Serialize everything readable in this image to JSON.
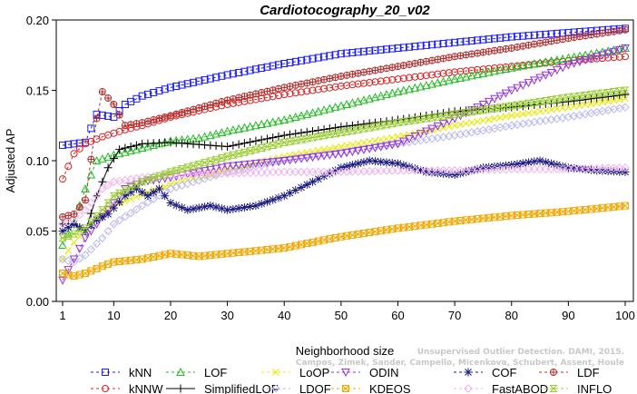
{
  "chart_data": {
    "type": "line",
    "title": "Cardiotocography_20_v02",
    "xlabel": "Neighborhood size",
    "ylabel": "Adjusted AP",
    "xlim": [
      1,
      100
    ],
    "ylim": [
      0.0,
      0.2
    ],
    "x_ticks": [
      "1",
      "10",
      "20",
      "30",
      "40",
      "50",
      "60",
      "70",
      "80",
      "90",
      "100"
    ],
    "y_ticks": [
      "0.00",
      "0.05",
      "0.10",
      "0.15",
      "0.20"
    ],
    "grid": false,
    "legend_position": "bottom",
    "series": [
      {
        "name": "kNN",
        "color": "#1c1cff",
        "marker": "square",
        "dash": "3,3",
        "points": [
          [
            1,
            0.111
          ],
          [
            5,
            0.113
          ],
          [
            7,
            0.133
          ],
          [
            10,
            0.131
          ],
          [
            12,
            0.14
          ],
          [
            15,
            0.146
          ],
          [
            20,
            0.152
          ],
          [
            30,
            0.161
          ],
          [
            40,
            0.169
          ],
          [
            50,
            0.176
          ],
          [
            60,
            0.18
          ],
          [
            70,
            0.184
          ],
          [
            80,
            0.188
          ],
          [
            90,
            0.191
          ],
          [
            100,
            0.194
          ]
        ]
      },
      {
        "name": "kNNW",
        "color": "#e02020",
        "marker": "circle",
        "dash": "3,3",
        "points": [
          [
            1,
            0.087
          ],
          [
            3,
            0.105
          ],
          [
            5,
            0.112
          ],
          [
            8,
            0.117
          ],
          [
            12,
            0.122
          ],
          [
            15,
            0.125
          ],
          [
            20,
            0.131
          ],
          [
            30,
            0.14
          ],
          [
            40,
            0.147
          ],
          [
            50,
            0.153
          ],
          [
            60,
            0.158
          ],
          [
            70,
            0.163
          ],
          [
            80,
            0.167
          ],
          [
            90,
            0.171
          ],
          [
            100,
            0.174
          ]
        ]
      },
      {
        "name": "LOF",
        "color": "#22bb22",
        "marker": "triangle",
        "dash": "3,3",
        "points": [
          [
            1,
            0.04
          ],
          [
            3,
            0.056
          ],
          [
            5,
            0.08
          ],
          [
            7,
            0.1
          ],
          [
            10,
            0.104
          ],
          [
            15,
            0.109
          ],
          [
            20,
            0.114
          ],
          [
            25,
            0.116
          ],
          [
            30,
            0.121
          ],
          [
            40,
            0.129
          ],
          [
            50,
            0.139
          ],
          [
            60,
            0.149
          ],
          [
            70,
            0.158
          ],
          [
            80,
            0.166
          ],
          [
            90,
            0.173
          ],
          [
            100,
            0.18
          ]
        ]
      },
      {
        "name": "SimplifiedLOF",
        "color": "#000000",
        "marker": "plus",
        "dash": "",
        "points": [
          [
            1,
            0.055
          ],
          [
            3,
            0.055
          ],
          [
            5,
            0.05
          ],
          [
            7,
            0.075
          ],
          [
            9,
            0.095
          ],
          [
            11,
            0.108
          ],
          [
            15,
            0.112
          ],
          [
            20,
            0.113
          ],
          [
            30,
            0.11
          ],
          [
            40,
            0.118
          ],
          [
            50,
            0.124
          ],
          [
            60,
            0.129
          ],
          [
            70,
            0.135
          ],
          [
            80,
            0.138
          ],
          [
            90,
            0.142
          ],
          [
            100,
            0.147
          ]
        ]
      },
      {
        "name": "LoOP",
        "color": "#e8e800",
        "marker": "x",
        "dash": "3,3",
        "points": [
          [
            1,
            0.03
          ],
          [
            3,
            0.042
          ],
          [
            5,
            0.05
          ],
          [
            8,
            0.062
          ],
          [
            10,
            0.068
          ],
          [
            15,
            0.076
          ],
          [
            20,
            0.083
          ],
          [
            30,
            0.093
          ],
          [
            40,
            0.103
          ],
          [
            50,
            0.11
          ],
          [
            60,
            0.117
          ],
          [
            70,
            0.125
          ],
          [
            80,
            0.132
          ],
          [
            90,
            0.138
          ],
          [
            100,
            0.144
          ]
        ]
      },
      {
        "name": "LDOF",
        "color": "#b8b8f0",
        "marker": "diamond",
        "dash": "3,3",
        "points": [
          [
            1,
            0.03
          ],
          [
            3,
            0.028
          ],
          [
            5,
            0.033
          ],
          [
            8,
            0.045
          ],
          [
            10,
            0.055
          ],
          [
            15,
            0.068
          ],
          [
            20,
            0.08
          ],
          [
            30,
            0.092
          ],
          [
            40,
            0.1
          ],
          [
            50,
            0.106
          ],
          [
            60,
            0.112
          ],
          [
            70,
            0.118
          ],
          [
            80,
            0.125
          ],
          [
            90,
            0.131
          ],
          [
            100,
            0.138
          ]
        ]
      },
      {
        "name": "ODIN",
        "color": "#9933dd",
        "marker": "triangle-down",
        "dash": "3,3",
        "points": [
          [
            1,
            0.015
          ],
          [
            3,
            0.03
          ],
          [
            5,
            0.045
          ],
          [
            8,
            0.06
          ],
          [
            10,
            0.07
          ],
          [
            12,
            0.08
          ],
          [
            15,
            0.085
          ],
          [
            20,
            0.088
          ],
          [
            25,
            0.092
          ],
          [
            30,
            0.096
          ],
          [
            40,
            0.1
          ],
          [
            50,
            0.105
          ],
          [
            60,
            0.112
          ],
          [
            70,
            0.13
          ],
          [
            80,
            0.15
          ],
          [
            90,
            0.168
          ],
          [
            100,
            0.18
          ]
        ]
      },
      {
        "name": "KDEOS",
        "color": "#f0a800",
        "marker": "square-x",
        "dash": "3,3",
        "points": [
          [
            1,
            0.02
          ],
          [
            3,
            0.018
          ],
          [
            5,
            0.02
          ],
          [
            8,
            0.025
          ],
          [
            10,
            0.028
          ],
          [
            15,
            0.03
          ],
          [
            20,
            0.034
          ],
          [
            25,
            0.032
          ],
          [
            30,
            0.034
          ],
          [
            40,
            0.038
          ],
          [
            45,
            0.042
          ],
          [
            50,
            0.046
          ],
          [
            60,
            0.052
          ],
          [
            70,
            0.057
          ],
          [
            80,
            0.061
          ],
          [
            90,
            0.064
          ],
          [
            100,
            0.068
          ]
        ]
      },
      {
        "name": "COF",
        "color": "#1a1a80",
        "marker": "star",
        "dash": "3,3",
        "points": [
          [
            1,
            0.05
          ],
          [
            3,
            0.055
          ],
          [
            5,
            0.05
          ],
          [
            7,
            0.058
          ],
          [
            9,
            0.062
          ],
          [
            12,
            0.075
          ],
          [
            14,
            0.08
          ],
          [
            16,
            0.075
          ],
          [
            18,
            0.08
          ],
          [
            20,
            0.07
          ],
          [
            23,
            0.065
          ],
          [
            27,
            0.068
          ],
          [
            30,
            0.065
          ],
          [
            35,
            0.068
          ],
          [
            40,
            0.075
          ],
          [
            45,
            0.085
          ],
          [
            50,
            0.095
          ],
          [
            55,
            0.1
          ],
          [
            60,
            0.098
          ],
          [
            65,
            0.092
          ],
          [
            70,
            0.09
          ],
          [
            75,
            0.095
          ],
          [
            80,
            0.097
          ],
          [
            85,
            0.1
          ],
          [
            90,
            0.095
          ],
          [
            95,
            0.093
          ],
          [
            100,
            0.092
          ]
        ]
      },
      {
        "name": "FastABOD",
        "color": "#f0b0f0",
        "marker": "diamond",
        "dash": "3,3",
        "points": [
          [
            1,
            0.055
          ],
          [
            3,
            0.058
          ],
          [
            5,
            0.065
          ],
          [
            8,
            0.08
          ],
          [
            10,
            0.085
          ],
          [
            15,
            0.088
          ],
          [
            20,
            0.09
          ],
          [
            30,
            0.091
          ],
          [
            40,
            0.092
          ],
          [
            50,
            0.092
          ],
          [
            60,
            0.093
          ],
          [
            70,
            0.093
          ],
          [
            80,
            0.094
          ],
          [
            90,
            0.094
          ],
          [
            100,
            0.095
          ]
        ]
      },
      {
        "name": "LDF",
        "color": "#b03030",
        "marker": "circle-plus",
        "dash": "3,3",
        "points": [
          [
            1,
            0.06
          ],
          [
            3,
            0.062
          ],
          [
            5,
            0.072
          ],
          [
            7,
            0.13
          ],
          [
            8,
            0.149
          ],
          [
            10,
            0.14
          ],
          [
            12,
            0.125
          ],
          [
            15,
            0.127
          ],
          [
            20,
            0.132
          ],
          [
            30,
            0.143
          ],
          [
            40,
            0.152
          ],
          [
            50,
            0.16
          ],
          [
            60,
            0.167
          ],
          [
            70,
            0.174
          ],
          [
            80,
            0.18
          ],
          [
            90,
            0.187
          ],
          [
            100,
            0.193
          ]
        ]
      },
      {
        "name": "INFLO",
        "color": "#99cc33",
        "marker": "hourglass",
        "dash": "3,3",
        "points": [
          [
            1,
            0.045
          ],
          [
            3,
            0.048
          ],
          [
            5,
            0.052
          ],
          [
            8,
            0.065
          ],
          [
            10,
            0.075
          ],
          [
            15,
            0.085
          ],
          [
            20,
            0.092
          ],
          [
            30,
            0.103
          ],
          [
            40,
            0.113
          ],
          [
            50,
            0.12
          ],
          [
            60,
            0.127
          ],
          [
            70,
            0.133
          ],
          [
            80,
            0.139
          ],
          [
            90,
            0.145
          ],
          [
            100,
            0.15
          ]
        ]
      }
    ]
  },
  "watermark": {
    "line1": "Unsupervised Outlier Detection. DAMI, 2015.",
    "line2": "Campos, Zimek, Sander, Campello, Micenkova, Schubert, Assent, Houle"
  }
}
